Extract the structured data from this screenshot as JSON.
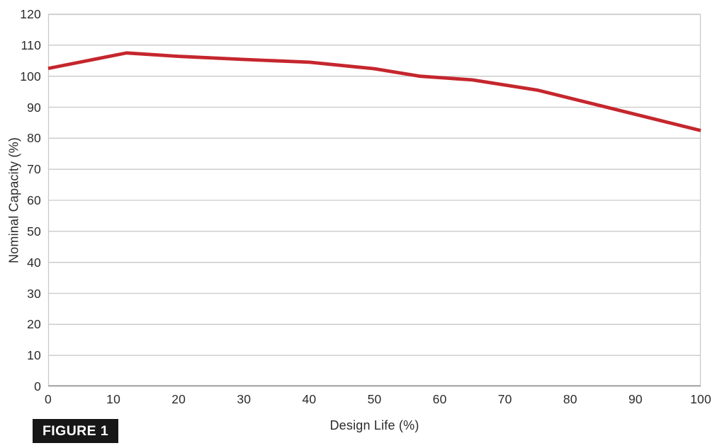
{
  "figure": {
    "badge_label": "FIGURE 1"
  },
  "chart_data": {
    "type": "line",
    "title": "",
    "xlabel": "Design Life (%)",
    "ylabel": "Nominal Capacity (%)",
    "xlim": [
      0,
      100
    ],
    "ylim": [
      0,
      120
    ],
    "x_ticks": [
      0,
      10,
      20,
      30,
      40,
      50,
      60,
      70,
      80,
      90,
      100
    ],
    "y_ticks": [
      0,
      10,
      20,
      30,
      40,
      50,
      60,
      70,
      80,
      90,
      100,
      110,
      120
    ],
    "grid": "horizontal-on",
    "legend_position": "none",
    "series": [
      {
        "name": "nominal-capacity",
        "points": [
          [
            0,
            102.5
          ],
          [
            12,
            107.5
          ],
          [
            20,
            106.4
          ],
          [
            30,
            105.4
          ],
          [
            40,
            104.5
          ],
          [
            50,
            102.4
          ],
          [
            57,
            100.0
          ],
          [
            65,
            98.8
          ],
          [
            75,
            95.5
          ],
          [
            100,
            82.5
          ]
        ]
      }
    ],
    "colors": {
      "line": "#c5262d",
      "grid": "#c9c9c9",
      "border": "#c9c9c9",
      "axis_bottom": "#aeaeae",
      "tick_text": "#2b2b2b",
      "badge_bg": "#171717",
      "badge_text": "#ffffff"
    }
  }
}
